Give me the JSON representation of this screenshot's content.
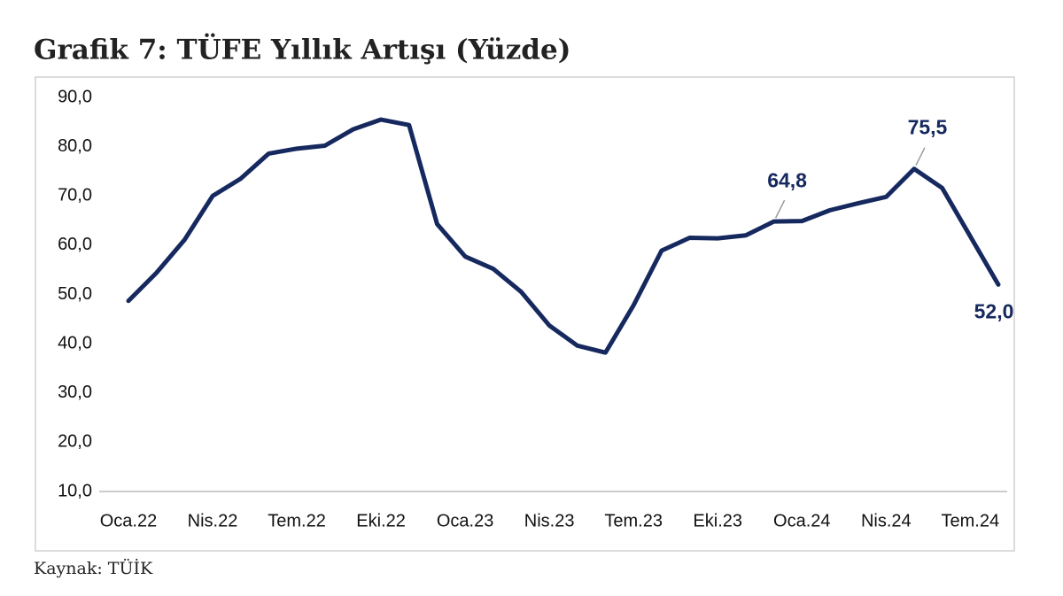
{
  "chart_data": {
    "type": "line",
    "title": "Grafik 7: TÜFE Yıllık Artışı (Yüzde)",
    "source": "Kaynak: TÜİK",
    "categories": [
      "Oca.22",
      null,
      null,
      "Nis.22",
      null,
      null,
      "Tem.22",
      null,
      null,
      "Eki.22",
      null,
      null,
      "Oca.23",
      null,
      null,
      "Nis.23",
      null,
      null,
      "Tem.23",
      null,
      null,
      "Eki.23",
      null,
      null,
      "Oca.24",
      null,
      null,
      "Nis.24",
      null,
      null,
      "Tem.24",
      null
    ],
    "series": [
      {
        "name": "TÜFE",
        "color": "#16295f",
        "values": [
          48.7,
          54.4,
          61.1,
          70.0,
          73.5,
          78.6,
          79.6,
          80.2,
          83.5,
          85.5,
          84.4,
          64.3,
          57.7,
          55.2,
          50.5,
          43.7,
          39.6,
          38.2,
          47.8,
          58.9,
          61.5,
          61.4,
          62.0,
          64.8,
          64.9,
          67.1,
          68.5,
          69.8,
          75.5,
          71.6,
          61.8,
          52.0
        ],
        "value_labels": [
          null,
          null,
          null,
          null,
          null,
          null,
          null,
          null,
          null,
          null,
          null,
          null,
          null,
          null,
          null,
          null,
          null,
          null,
          null,
          null,
          null,
          null,
          null,
          "64,8",
          null,
          null,
          null,
          null,
          "75,5",
          null,
          null,
          "52,0"
        ]
      }
    ],
    "ylim": [
      10,
      90
    ],
    "yticks": [
      {
        "value": 10,
        "label": "10,0"
      },
      {
        "value": 20,
        "label": "20,0"
      },
      {
        "value": 30,
        "label": "30,0"
      },
      {
        "value": 40,
        "label": "40,0"
      },
      {
        "value": 50,
        "label": "50,0"
      },
      {
        "value": 60,
        "label": "60,0"
      },
      {
        "value": 70,
        "label": "70,0"
      },
      {
        "value": 80,
        "label": "80,0"
      },
      {
        "value": 90,
        "label": "90,0"
      }
    ],
    "grid": false
  }
}
